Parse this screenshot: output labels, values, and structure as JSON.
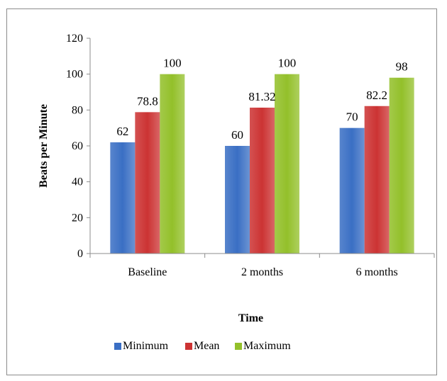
{
  "chart_data": {
    "type": "bar",
    "title": "",
    "categories": [
      "Baseline",
      "2 months",
      "6 months"
    ],
    "series": [
      {
        "name": "Minimum",
        "values": [
          62,
          60,
          70
        ],
        "labels": [
          "62",
          "60",
          "70"
        ],
        "color": "#3a6fc4"
      },
      {
        "name": "Mean",
        "values": [
          78.8,
          81.32,
          82.2
        ],
        "labels": [
          "78.8",
          "81.32",
          "82.2"
        ],
        "color": "#cc3333"
      },
      {
        "name": "Maximum",
        "values": [
          100,
          100,
          98
        ],
        "labels": [
          "100",
          "100",
          "98"
        ],
        "color": "#93c02a"
      }
    ],
    "xlabel": "Time",
    "ylabel": "Beats per Minute",
    "ylim": [
      0,
      120
    ],
    "yticks": [
      "0",
      "20",
      "40",
      "60",
      "80",
      "100",
      "120"
    ],
    "grid": false,
    "legend_position": "bottom"
  }
}
